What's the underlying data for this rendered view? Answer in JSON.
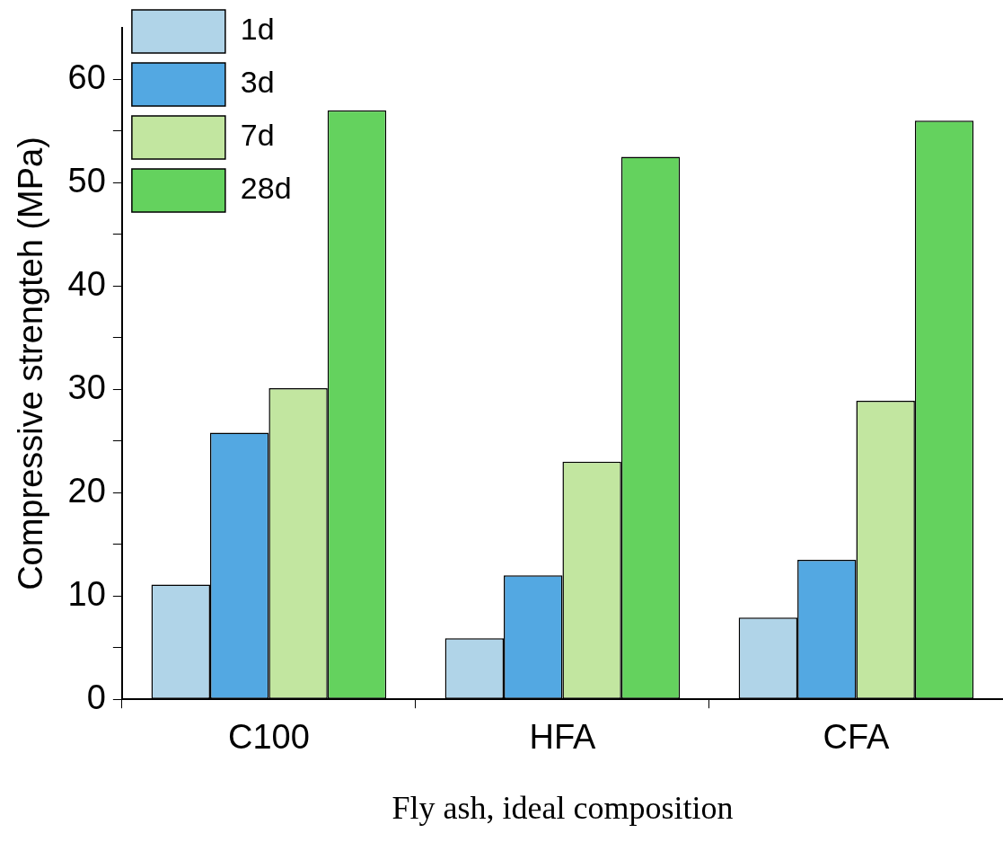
{
  "chart_data": {
    "type": "bar",
    "xlabel": "Fly ash, ideal composition",
    "ylabel": "Compressive strengteh (MPa)",
    "categories": [
      "C100",
      "HFA",
      "CFA"
    ],
    "series": [
      {
        "name": "1d",
        "color": "#b0d4e8",
        "values": [
          11.1,
          5.9,
          7.9
        ]
      },
      {
        "name": "3d",
        "color": "#53a8e2",
        "values": [
          25.8,
          12.0,
          13.5
        ]
      },
      {
        "name": "7d",
        "color": "#c2e6a0",
        "values": [
          30.1,
          23.0,
          28.9
        ]
      },
      {
        "name": "28d",
        "color": "#64d25e",
        "values": [
          57.0,
          52.5,
          56.0
        ]
      }
    ],
    "ylim": [
      0,
      65
    ],
    "yticks": [
      0,
      {
        "value": 5,
        "label": null
      },
      10,
      {
        "value": 15,
        "label": null
      },
      20,
      {
        "value": 25,
        "label": null
      },
      30,
      {
        "value": 35,
        "label": null
      },
      40,
      {
        "value": 45,
        "label": null
      },
      50,
      {
        "value": 55,
        "label": null
      },
      60
    ],
    "grid": false,
    "legend": "top left"
  }
}
